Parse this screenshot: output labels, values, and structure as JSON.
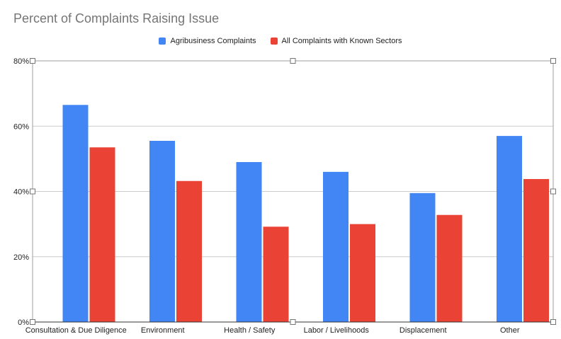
{
  "chart_data": {
    "type": "bar",
    "title": "Percent of Complaints Raising Issue",
    "categories": [
      "Consultation & Due Diligence",
      "Environment",
      "Health / Safety",
      "Labor / Livelihoods",
      "Displacement",
      "Other"
    ],
    "series": [
      {
        "name": "Agribusiness Complaints",
        "color": "#4285f4",
        "values": [
          66.5,
          55.5,
          49,
          46,
          39.5,
          57
        ]
      },
      {
        "name": "All Complaints with Known Sectors",
        "color": "#ea4335",
        "values": [
          53.5,
          43.2,
          29.2,
          30,
          32.8,
          43.8
        ]
      }
    ],
    "ylim": [
      0,
      80
    ],
    "yticks": [
      0,
      20,
      40,
      60,
      80
    ],
    "ytick_labels": [
      "0%",
      "20%",
      "40%",
      "60%",
      "80%"
    ],
    "grid": true,
    "legend": "top-center",
    "xlabel": "",
    "ylabel": ""
  }
}
